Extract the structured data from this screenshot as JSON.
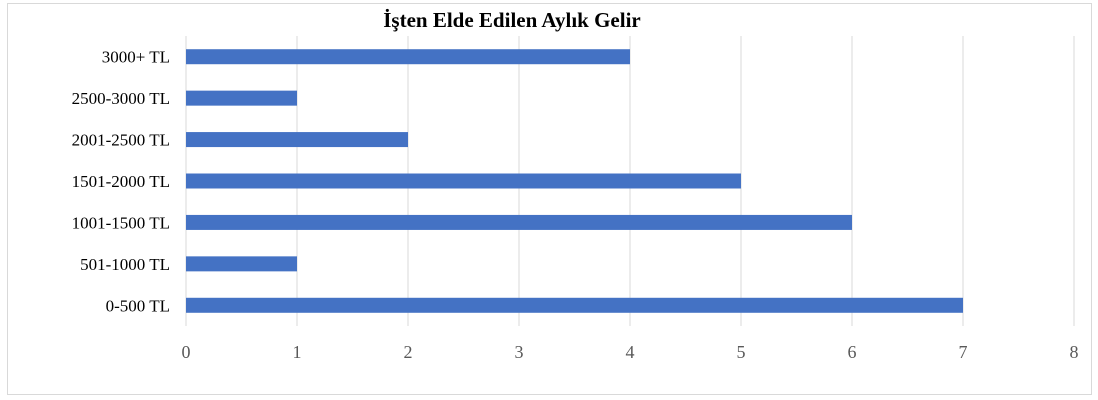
{
  "chart_data": {
    "type": "bar",
    "orientation": "horizontal",
    "title": "İşten Elde Edilen Aylık Gelir",
    "categories": [
      "3000+ TL",
      "2500-3000 TL",
      "2001-2500 TL",
      "1501-2000 TL",
      "1001-1500 TL",
      "501-1000 TL",
      "0-500 TL"
    ],
    "values": [
      4,
      1,
      2,
      5,
      6,
      1,
      7
    ],
    "xlim": [
      0,
      8
    ],
    "xticks": [
      "0",
      "1",
      "2",
      "3",
      "4",
      "5",
      "6",
      "7",
      "8"
    ],
    "xlabel": "",
    "ylabel": "",
    "grid": true,
    "legend": "none",
    "bar_color": "#4472c4",
    "grid_color": "#d9d9d9"
  }
}
